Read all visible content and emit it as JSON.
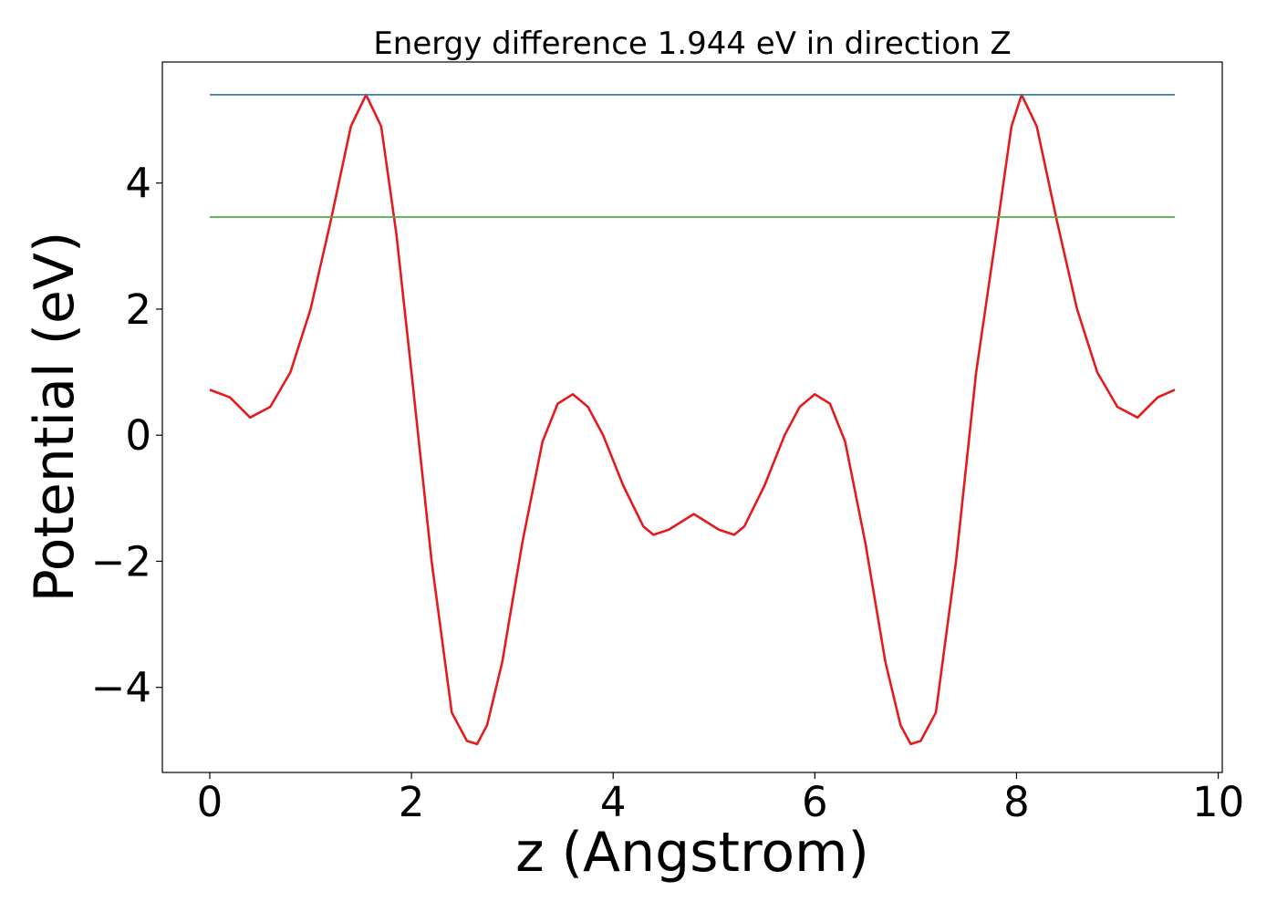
{
  "chart_data": {
    "type": "line",
    "title": "Energy difference 1.944 eV in direction Z",
    "xlabel": "z (Angstrom)",
    "ylabel": "Potential (eV)",
    "xlim": [
      -0.47,
      10.04
    ],
    "ylim": [
      -5.35,
      5.92
    ],
    "xticks": [
      0,
      2,
      4,
      6,
      8,
      10
    ],
    "xtick_labels": [
      "0",
      "2",
      "4",
      "6",
      "8",
      "10"
    ],
    "yticks": [
      -4,
      -2,
      0,
      2,
      4
    ],
    "ytick_labels": [
      "−4",
      "−2",
      "0",
      "2",
      "4"
    ],
    "grid": false,
    "legend": "none",
    "colors": {
      "potential": "#e41a1c",
      "max_level": "#377eb8",
      "mean_level": "#4daf4a"
    },
    "series": [
      {
        "x": [
          0,
          0.2,
          0.4,
          0.6,
          0.8,
          1.0,
          1.2,
          1.4,
          1.55,
          1.7,
          1.85,
          2.0,
          2.2,
          2.4,
          2.55,
          2.65,
          2.75,
          2.9,
          3.1,
          3.3,
          3.45,
          3.6,
          3.75,
          3.9,
          4.1,
          4.3,
          4.4,
          4.55,
          4.8,
          5.05,
          5.2,
          5.3,
          5.5,
          5.7,
          5.85,
          6.0,
          6.15,
          6.3,
          6.5,
          6.7,
          6.85,
          6.95,
          7.05,
          7.2,
          7.4,
          7.6,
          7.8,
          7.95,
          8.05,
          8.2,
          8.4,
          8.6,
          8.8,
          9.0,
          9.2,
          9.4,
          9.57
        ],
        "values": [
          0.72,
          0.6,
          0.28,
          0.45,
          1.0,
          2.0,
          3.4,
          4.9,
          5.4,
          4.9,
          3.2,
          1.0,
          -2.0,
          -4.4,
          -4.85,
          -4.9,
          -4.6,
          -3.6,
          -1.7,
          -0.1,
          0.5,
          0.65,
          0.45,
          0.0,
          -0.8,
          -1.45,
          -1.58,
          -1.5,
          -1.25,
          -1.5,
          -1.58,
          -1.45,
          -0.8,
          0.0,
          0.45,
          0.65,
          0.5,
          -0.1,
          -1.7,
          -3.6,
          -4.6,
          -4.9,
          -4.85,
          -4.4,
          -2.0,
          1.0,
          3.2,
          4.9,
          5.4,
          4.9,
          3.4,
          2.0,
          1.0,
          0.45,
          0.28,
          0.6,
          0.72
        ]
      },
      {
        "x": [
          0,
          9.57
        ],
        "values": [
          5.4,
          5.4
        ]
      },
      {
        "x": [
          0,
          9.57
        ],
        "values": [
          3.46,
          3.46
        ]
      }
    ]
  }
}
